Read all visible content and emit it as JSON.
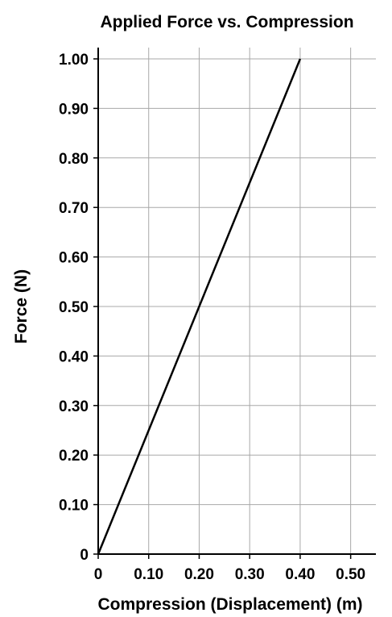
{
  "chart_data": {
    "type": "line",
    "title": "Applied Force vs. Compression",
    "xlabel": "Compression (Displacement) (m)",
    "ylabel": "Force (N)",
    "xlim": [
      0,
      0.55
    ],
    "ylim": [
      0,
      1.0
    ],
    "x_ticks": [
      "0",
      "0.10",
      "0.20",
      "0.30",
      "0.40",
      "0.50"
    ],
    "y_ticks": [
      "0",
      "0.10",
      "0.20",
      "0.30",
      "0.40",
      "0.50",
      "0.60",
      "0.70",
      "0.80",
      "0.90",
      "1.00"
    ],
    "grid": true,
    "series": [
      {
        "x": [
          0,
          0.4
        ],
        "y": [
          0,
          1.0
        ],
        "color": "#000000"
      }
    ]
  }
}
